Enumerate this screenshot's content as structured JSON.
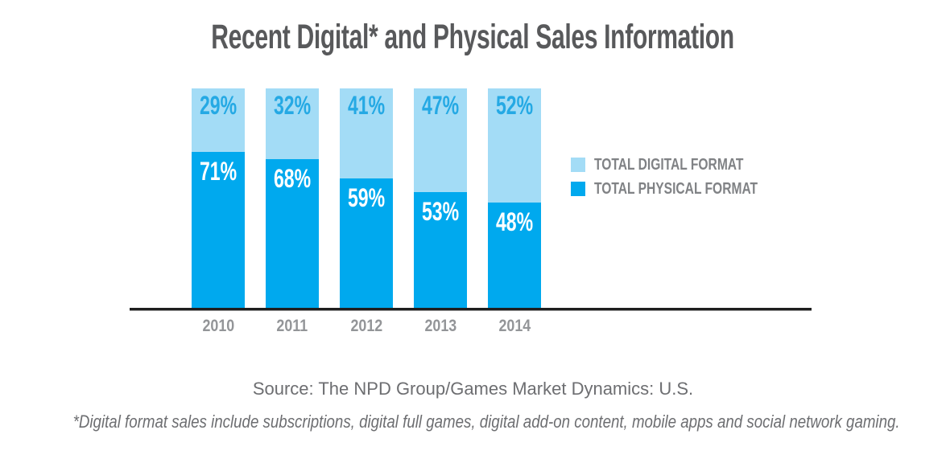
{
  "title": "Recent Digital* and Physical Sales Information",
  "colors": {
    "digital": "#A3DCF6",
    "physical": "#00A9EE",
    "digital_label_text": "#25A9E4",
    "physical_label_text": "#FFFFFF",
    "title_text": "#58595B",
    "year_text": "#939598",
    "legend_text": "#808285",
    "axis": "#1E1E1E",
    "note_text": "#6D6E71"
  },
  "legend": {
    "items": [
      {
        "label": "TOTAL DIGITAL FORMAT",
        "color": "#A3DCF6"
      },
      {
        "label": "TOTAL PHYSICAL FORMAT",
        "color": "#00A9EE"
      }
    ]
  },
  "source": "Source: The NPD Group/Games Market Dynamics: U.S.",
  "footnote": "*Digital format sales include subscriptions, digital full games, digital add-on content, mobile apps and social network gaming.",
  "chart_data": {
    "type": "bar",
    "stacked": true,
    "title": "Recent Digital* and Physical Sales Information",
    "categories": [
      "2010",
      "2011",
      "2012",
      "2013",
      "2014"
    ],
    "series": [
      {
        "name": "Total Digital Format",
        "color": "#A3DCF6",
        "values": [
          29,
          32,
          41,
          47,
          52
        ],
        "labels": [
          "29%",
          "32%",
          "41%",
          "47%",
          "52%"
        ]
      },
      {
        "name": "Total Physical Format",
        "color": "#00A9EE",
        "values": [
          71,
          68,
          59,
          53,
          48
        ],
        "labels": [
          "71%",
          "68%",
          "59%",
          "53%",
          "48%"
        ]
      }
    ],
    "unit": "percent",
    "ylim": [
      0,
      100
    ],
    "grid": false,
    "legend_position": "right",
    "value_labels": "inside-top-of-segment"
  }
}
